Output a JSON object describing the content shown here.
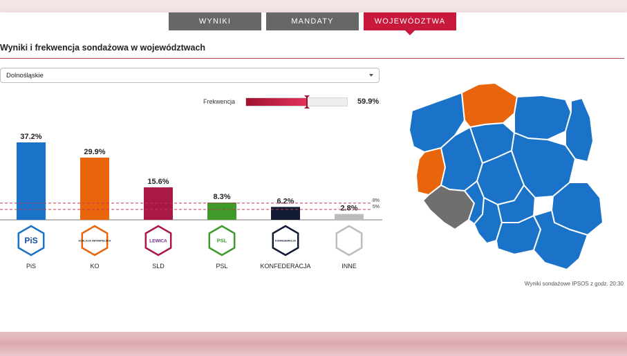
{
  "tabs": [
    {
      "label": "WYNIKI",
      "active": false
    },
    {
      "label": "MANDATY",
      "active": false
    },
    {
      "label": "WOJEWÓDZTWA",
      "active": true
    }
  ],
  "heading": "Wyniki i frekwencja sondażowa w województwach",
  "region_select": {
    "value": "Dolnośląskie"
  },
  "turnout": {
    "label": "Frekwencja",
    "value_text": "59.9%",
    "value": 59.9,
    "marker": 60
  },
  "source_note": "Wyniki sondażowe IPSOS z godz. 20:30",
  "colors": {
    "accent": "#c8183b",
    "tab": "#676767"
  },
  "chart_data": {
    "type": "bar",
    "categories": [
      "PiS",
      "KO",
      "SLD",
      "PSL",
      "KONFEDERACJA",
      "INNE"
    ],
    "values": [
      37.2,
      29.9,
      15.6,
      8.3,
      6.2,
      2.8
    ],
    "value_labels": [
      "37.2%",
      "29.9%",
      "15.6%",
      "8.3%",
      "6.2%",
      "2.8%"
    ],
    "colors": [
      "#1a73c9",
      "#e8650c",
      "#a81a45",
      "#3f9a2a",
      "#121c35",
      "#bcbcbc"
    ],
    "logo_texts": [
      "PiS",
      "KOALICJA OBYWATELSKA",
      "LEWICA",
      "PSL",
      "KONFEDERACJA",
      ""
    ],
    "thresholds": [
      {
        "value": 8,
        "label": "8%"
      },
      {
        "value": 5,
        "label": "5%"
      }
    ],
    "ylim": [
      0,
      40
    ]
  },
  "map": {
    "selected_color": "#6f6f6f",
    "regions": [
      {
        "name": "Zachodniopomorskie",
        "color": "#1a73c9"
      },
      {
        "name": "Pomorskie",
        "color": "#e8650c"
      },
      {
        "name": "Warmińsko-Mazurskie",
        "color": "#1a73c9"
      },
      {
        "name": "Podlaskie",
        "color": "#1a73c9"
      },
      {
        "name": "Lubuskie",
        "color": "#e8650c"
      },
      {
        "name": "Wielkopolskie",
        "color": "#1a73c9"
      },
      {
        "name": "Kujawsko-Pomorskie",
        "color": "#1a73c9"
      },
      {
        "name": "Mazowieckie",
        "color": "#1a73c9"
      },
      {
        "name": "Dolnośląskie",
        "color": "#6f6f6f"
      },
      {
        "name": "Łódzkie",
        "color": "#1a73c9"
      },
      {
        "name": "Opolskie",
        "color": "#1a73c9"
      },
      {
        "name": "Śląskie",
        "color": "#1a73c9"
      },
      {
        "name": "Świętokrzyskie",
        "color": "#1a73c9"
      },
      {
        "name": "Lubelskie",
        "color": "#1a73c9"
      },
      {
        "name": "Małopolskie",
        "color": "#1a73c9"
      },
      {
        "name": "Podkarpackie",
        "color": "#1a73c9"
      }
    ]
  }
}
